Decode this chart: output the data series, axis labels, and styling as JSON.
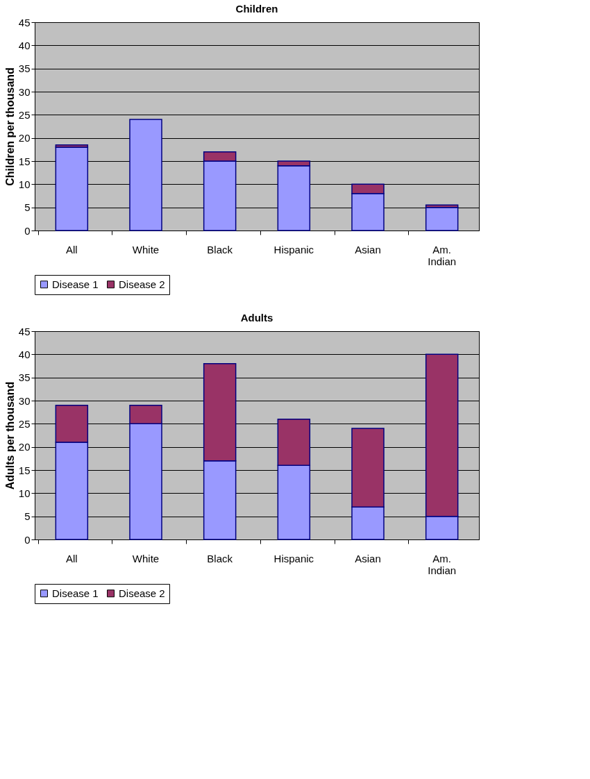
{
  "chart_data": [
    {
      "type": "bar",
      "title": "Children",
      "ylabel": "Children per thousand",
      "categories": [
        "All",
        "White",
        "Black",
        "Hispanic",
        "Asian",
        "Am. Indian"
      ],
      "stacked": true,
      "series": [
        {
          "name": "Disease 1",
          "color": "#9999ff",
          "values": [
            18,
            24,
            15,
            14,
            8,
            5
          ]
        },
        {
          "name": "Disease 2",
          "color": "#993366",
          "values": [
            0.5,
            0,
            2,
            1,
            2,
            0.5
          ]
        }
      ],
      "ylim": [
        0,
        45
      ],
      "yticks": [
        0,
        5,
        10,
        15,
        20,
        25,
        30,
        35,
        40,
        45
      ],
      "grid": "y",
      "legend": "bottom"
    },
    {
      "type": "bar",
      "title": "Adults",
      "ylabel": "Adults per thousand",
      "categories": [
        "All",
        "White",
        "Black",
        "Hispanic",
        "Asian",
        "Am. Indian"
      ],
      "stacked": true,
      "series": [
        {
          "name": "Disease 1",
          "color": "#9999ff",
          "values": [
            21,
            25,
            17,
            16,
            7,
            5
          ]
        },
        {
          "name": "Disease 2",
          "color": "#993366",
          "values": [
            8,
            4,
            21,
            10,
            17,
            35
          ]
        }
      ],
      "ylim": [
        0,
        45
      ],
      "yticks": [
        0,
        5,
        10,
        15,
        20,
        25,
        30,
        35,
        40,
        45
      ],
      "grid": "y",
      "legend": "bottom"
    }
  ]
}
